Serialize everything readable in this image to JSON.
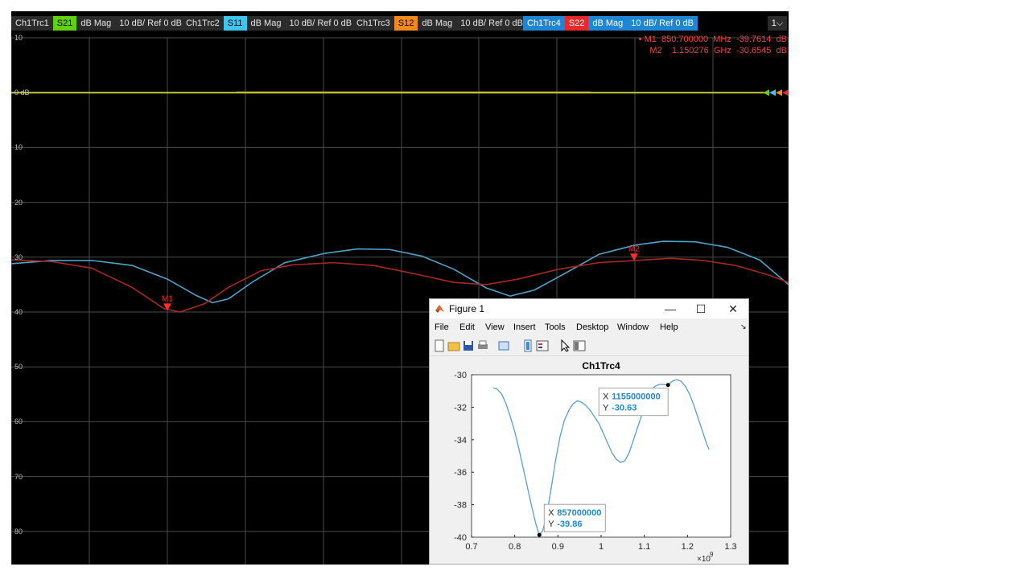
{
  "trace_tabs": [
    {
      "name": "Ch1Trc1",
      "param": "S21",
      "format": "dB Mag",
      "scale": "10 dB/ Ref 0 dB",
      "param_color": "#5fd10d"
    },
    {
      "name": "Ch1Trc2",
      "param": "S11",
      "format": "dB Mag",
      "scale": "10 dB/ Ref 0 dB",
      "param_color": "#3ec6ee"
    },
    {
      "name": "Ch1Trc3",
      "param": "S12",
      "format": "dB Mag",
      "scale": "10 dB/ Ref 0 dB",
      "param_color": "#f08a1c"
    },
    {
      "name": "Ch1Trc4",
      "param": "S22",
      "format": "dB Mag",
      "scale": "10 dB/ Ref 0 dB",
      "param_color": "#e8282b"
    }
  ],
  "channel_selector": "1",
  "markers": {
    "m1": {
      "label": "M1",
      "freq": "850.700000",
      "unit": "MHz",
      "value": "-39.7614",
      "value_unit": "dB",
      "prefix": "• M1"
    },
    "m2": {
      "label": "M2",
      "freq": "1.150276",
      "unit": "GHz",
      "value": "-30.6545",
      "value_unit": "dB",
      "prefix": "M2"
    }
  },
  "vna_plot": {
    "y_labels": [
      "10",
      "0 dB",
      "10",
      "20",
      "30",
      "40",
      "50",
      "60",
      "70",
      "80"
    ],
    "ref_line_db": 0,
    "colors": {
      "s11": "#4aa3c8",
      "s22": "#a8281f",
      "s21": "#c8c83a",
      "marker": "#ff2a2a",
      "grid": "#4a4a4a"
    }
  },
  "figure": {
    "window_title": "Figure 1",
    "menu": [
      "File",
      "Edit",
      "View",
      "Insert",
      "Tools",
      "Desktop",
      "Window",
      "Help"
    ],
    "window_buttons": {
      "minimize": "—",
      "maximize": "☐",
      "close": "✕"
    },
    "toolbar_icons": [
      "new-file-icon",
      "open-folder-icon",
      "save-icon",
      "print-icon",
      "print-preview-icon",
      "link-plot-icon",
      "insert-legend-icon",
      "pointer-icon",
      "property-editor-icon"
    ]
  },
  "chart_data": {
    "type": "line",
    "title": "Ch1Trc4",
    "xlabel": "",
    "ylabel": "",
    "xlim": [
      0.7,
      1.3
    ],
    "ylim": [
      -40,
      -30
    ],
    "x_ticks": [
      "0.7",
      "0.8",
      "0.9",
      "1",
      "1.1",
      "1.2",
      "1.3"
    ],
    "y_ticks": [
      "-30",
      "-32",
      "-34",
      "-36",
      "-38",
      "-40"
    ],
    "x_exponent": "×10",
    "x_exponent_power": "9",
    "grid": false,
    "series_color": "#5a9fd4",
    "series": [
      {
        "x": [
          0.75,
          0.76,
          0.77,
          0.78,
          0.79,
          0.8,
          0.81,
          0.82,
          0.83,
          0.84,
          0.85,
          0.857,
          0.865,
          0.875,
          0.885,
          0.895,
          0.905,
          0.915,
          0.925,
          0.935,
          0.945,
          0.955,
          0.965,
          0.975,
          0.985,
          0.995,
          1.005,
          1.015,
          1.025,
          1.035,
          1.045,
          1.055,
          1.065,
          1.075,
          1.085,
          1.095,
          1.105,
          1.115,
          1.125,
          1.135,
          1.145,
          1.155,
          1.165,
          1.175,
          1.185,
          1.195,
          1.205,
          1.215,
          1.225,
          1.235,
          1.245,
          1.25
        ],
        "y": [
          -30.8,
          -30.9,
          -31.2,
          -31.8,
          -32.6,
          -33.5,
          -34.6,
          -35.8,
          -37.0,
          -38.2,
          -39.3,
          -39.86,
          -39.6,
          -38.5,
          -36.9,
          -35.2,
          -33.8,
          -32.8,
          -32.2,
          -31.8,
          -31.6,
          -31.7,
          -31.9,
          -32.2,
          -32.6,
          -33.0,
          -33.6,
          -34.2,
          -34.8,
          -35.2,
          -35.4,
          -35.3,
          -34.8,
          -34.0,
          -33.2,
          -32.4,
          -31.6,
          -31.0,
          -30.7,
          -30.6,
          -30.6,
          -30.63,
          -30.4,
          -30.3,
          -30.4,
          -30.7,
          -31.2,
          -31.9,
          -32.7,
          -33.5,
          -34.3,
          -34.6
        ]
      }
    ],
    "datatips": [
      {
        "x_label": "X",
        "x_value": "1155000000",
        "y_label": "Y",
        "y_value": "-30.63",
        "x": 1.155,
        "y": -30.63
      },
      {
        "x_label": "X",
        "x_value": "857000000",
        "y_label": "Y",
        "y_value": "-39.86",
        "x": 0.857,
        "y": -39.86
      }
    ]
  }
}
